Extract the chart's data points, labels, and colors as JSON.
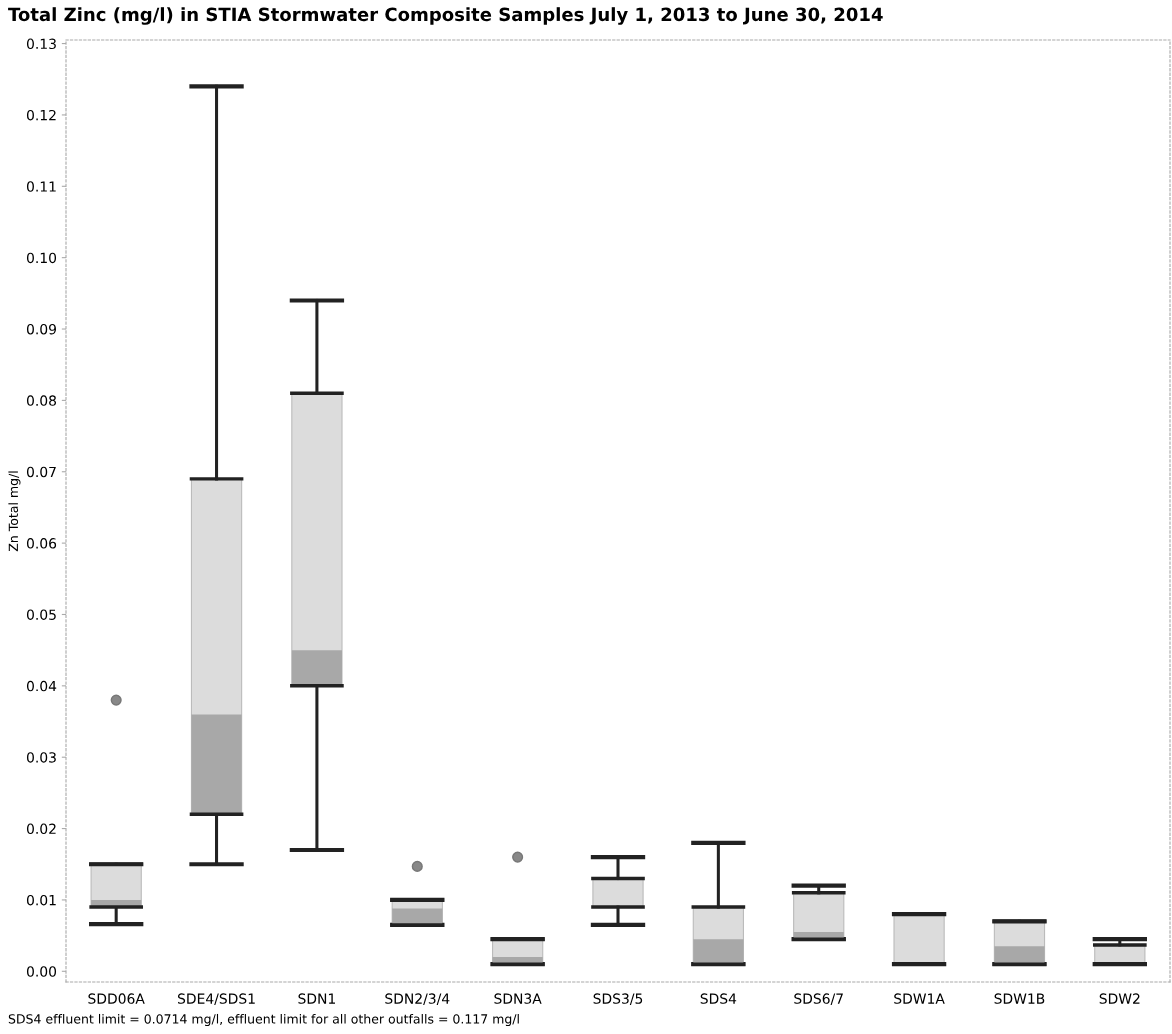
{
  "chart_data": {
    "type": "box",
    "title": "Total Zinc (mg/l) in STIA Stormwater Composite Samples July 1, 2013 to June 30, 2014",
    "ylabel": "Zn Total mg/l",
    "categories": [
      "SDD06A",
      "SDE4/SDS1",
      "SDN1",
      "SDN2/3/4",
      "SDN3A",
      "SDS3/5",
      "SDS4",
      "SDS6/7",
      "SDW1A",
      "SDW1B",
      "SDW2"
    ],
    "series": [
      {
        "color": "#dcdcdc",
        "boxes": [
          {
            "low": 0.0066,
            "q1": 0.009,
            "median": 0.01,
            "q3": 0.015,
            "high": 0.015,
            "outliers": [
              0.038
            ]
          },
          {
            "low": 0.015,
            "q1": 0.022,
            "median": 0.036,
            "q3": 0.069,
            "high": 0.124
          },
          {
            "low": 0.017,
            "q1": 0.04,
            "median": 0.045,
            "q3": 0.081,
            "high": 0.094
          },
          {
            "low": 0.0065,
            "q1": 0.0065,
            "median": 0.0088,
            "q3": 0.01,
            "high": 0.01,
            "outliers": [
              0.0147
            ]
          },
          {
            "low": 0.001,
            "q1": 0.001,
            "median": 0.002,
            "q3": 0.0045,
            "high": 0.0045,
            "outliers": [
              0.016
            ]
          },
          {
            "low": 0.0065,
            "q1": 0.009,
            "median": 0.009,
            "q3": 0.013,
            "high": 0.016
          },
          {
            "low": 0.001,
            "q1": 0.001,
            "median": 0.0045,
            "q3": 0.009,
            "high": 0.018
          },
          {
            "low": 0.0045,
            "q1": 0.0045,
            "median": 0.0055,
            "q3": 0.011,
            "high": 0.012
          },
          {
            "low": 0.001,
            "q1": 0.001,
            "median": 0.001,
            "q3": 0.008,
            "high": 0.008
          },
          {
            "low": 0.001,
            "q1": 0.001,
            "median": 0.0035,
            "q3": 0.007,
            "high": 0.007
          },
          {
            "low": 0.001,
            "q1": 0.001,
            "median": 0.001,
            "q3": 0.0037,
            "high": 0.0045
          }
        ]
      }
    ],
    "ylim": [
      -0.0015,
      0.1305
    ],
    "yticks": [
      {
        "value": 0,
        "label": "0.00"
      },
      0.01,
      0.02,
      0.03,
      0.04,
      0.05,
      0.06,
      0.07,
      0.08,
      0.09,
      {
        "value": 0.1,
        "label": "0.10"
      },
      0.11,
      0.12,
      0.13
    ],
    "grid": false,
    "annotations": [
      "SDS4 effluent limit = 0.0714 mg/l, effluent limit for all other outfalls = 0.117 mg/l"
    ]
  }
}
